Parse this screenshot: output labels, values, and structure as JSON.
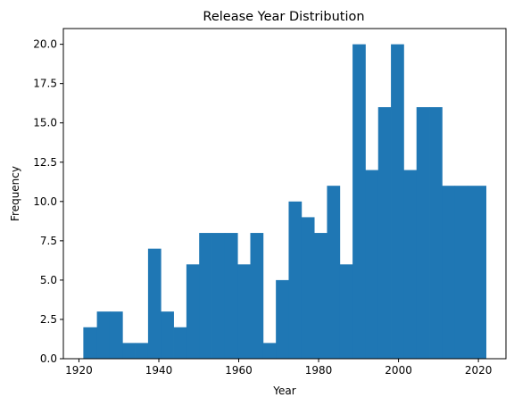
{
  "chart_data": {
    "type": "bar",
    "title": "Release Year Distribution",
    "xlabel": "Year",
    "ylabel": "Frequency",
    "bar_color": "#1f77b4",
    "xlim": [
      1916.1,
      2026.9
    ],
    "ylim": [
      0,
      21
    ],
    "grid": false,
    "legend": "none",
    "xticks": [
      1920,
      1940,
      1960,
      1980,
      2000,
      2020
    ],
    "xtick_labels": [
      "1920",
      "1940",
      "1960",
      "1980",
      "2000",
      "2020"
    ],
    "yticks": [
      0,
      2.5,
      5,
      7.5,
      10,
      12.5,
      15,
      17.5,
      20
    ],
    "ytick_labels": [
      "0.0",
      "2.5",
      "5.0",
      "7.5",
      "10.0",
      "12.5",
      "15.0",
      "17.5",
      "20.0"
    ],
    "bin_edges": [
      1921.1,
      1924.5,
      1927.7,
      1930.9,
      1934.1,
      1937.3,
      1940.5,
      1943.7,
      1946.9,
      1950.1,
      1953.3,
      1956.5,
      1959.7,
      1962.9,
      1966.1,
      1969.3,
      1972.5,
      1975.7,
      1978.9,
      1982.1,
      1985.3,
      1988.5,
      1991.7,
      1994.9,
      1998.1,
      2001.3,
      2004.5,
      2007.7,
      2010.9,
      2014.1,
      2017.3,
      2021.9
    ],
    "values": [
      2,
      3,
      3,
      1,
      1,
      7,
      3,
      2,
      6,
      8,
      8,
      8,
      6,
      8,
      1,
      5,
      10,
      9,
      8,
      11,
      6,
      20,
      12,
      16,
      20,
      12,
      16,
      16,
      11,
      11,
      11
    ]
  }
}
